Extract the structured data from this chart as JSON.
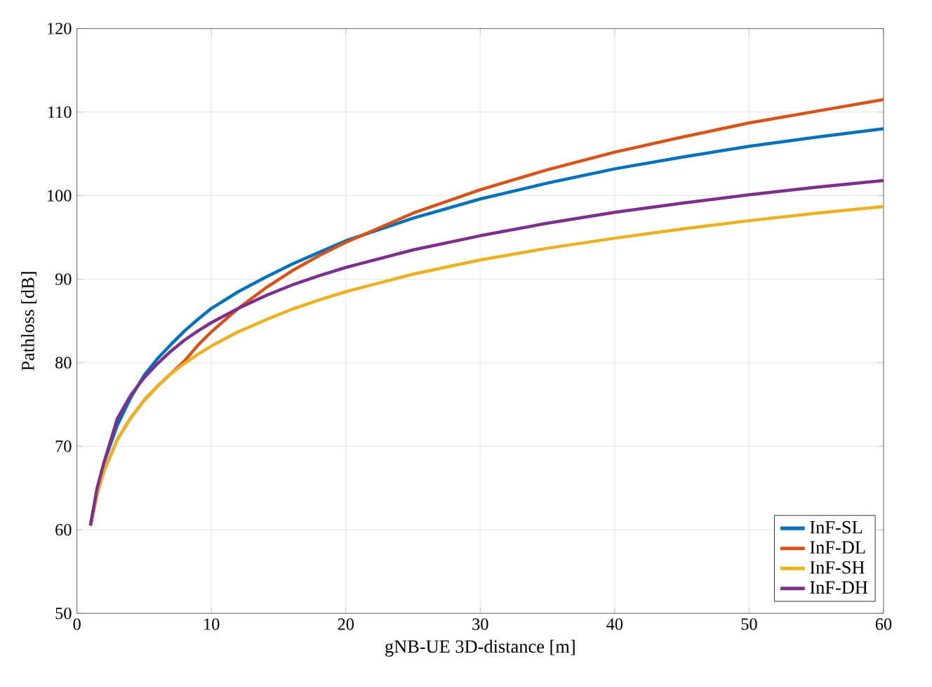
{
  "chart_data": {
    "type": "line",
    "xlabel": "gNB-UE 3D-distance [m]",
    "ylabel": "Pathloss [dB]",
    "x": [
      1,
      1.5,
      2,
      3,
      4,
      5,
      6,
      7,
      8,
      9,
      10,
      12,
      14,
      16,
      18,
      20,
      25,
      30,
      35,
      40,
      45,
      50,
      55,
      60
    ],
    "xlim": [
      0,
      60
    ],
    "xticks": [
      0,
      10,
      20,
      30,
      40,
      50,
      60
    ],
    "ylim": [
      50,
      120
    ],
    "yticks": [
      50,
      60,
      70,
      80,
      90,
      100,
      110,
      120
    ],
    "grid": true,
    "legend": "bottom right",
    "line_style": "solid",
    "marker": "none",
    "series": [
      {
        "name": "InF-SL",
        "color": "#0072bd",
        "values": [
          60.5,
          64.5,
          68,
          72.5,
          75.8,
          78.5,
          80.5,
          82.2,
          83.8,
          85.2,
          86.5,
          88.5,
          90.2,
          91.8,
          93.2,
          94.6,
          97.3,
          99.6,
          101.5,
          103.2,
          104.6,
          105.9,
          107.0,
          108.0
        ]
      },
      {
        "name": "InF-DL",
        "color": "#d95319",
        "values": [
          60.5,
          64.3,
          67.0,
          70.8,
          73.4,
          75.5,
          77.2,
          78.7,
          80.2,
          82.1,
          83.7,
          86.5,
          88.9,
          91.0,
          92.8,
          94.4,
          97.9,
          100.7,
          103.1,
          105.2,
          107.0,
          108.7,
          110.1,
          111.5
        ]
      },
      {
        "name": "InF-SH",
        "color": "#edb120",
        "values": [
          60.5,
          64.3,
          67.0,
          70.8,
          73.4,
          75.5,
          77.2,
          78.7,
          79.9,
          81.0,
          82.0,
          83.7,
          85.1,
          86.4,
          87.5,
          88.5,
          90.6,
          92.3,
          93.7,
          94.9,
          96.0,
          97.0,
          97.9,
          98.7
        ]
      },
      {
        "name": "InF-DH",
        "color": "#7e2f8e",
        "values": [
          60.5,
          65.0,
          68,
          73.3,
          76.1,
          78.2,
          79.9,
          81.4,
          82.7,
          83.8,
          84.8,
          86.5,
          88.0,
          89.3,
          90.4,
          91.4,
          93.5,
          95.2,
          96.7,
          98.0,
          99.1,
          100.1,
          101.0,
          101.8
        ]
      }
    ]
  }
}
